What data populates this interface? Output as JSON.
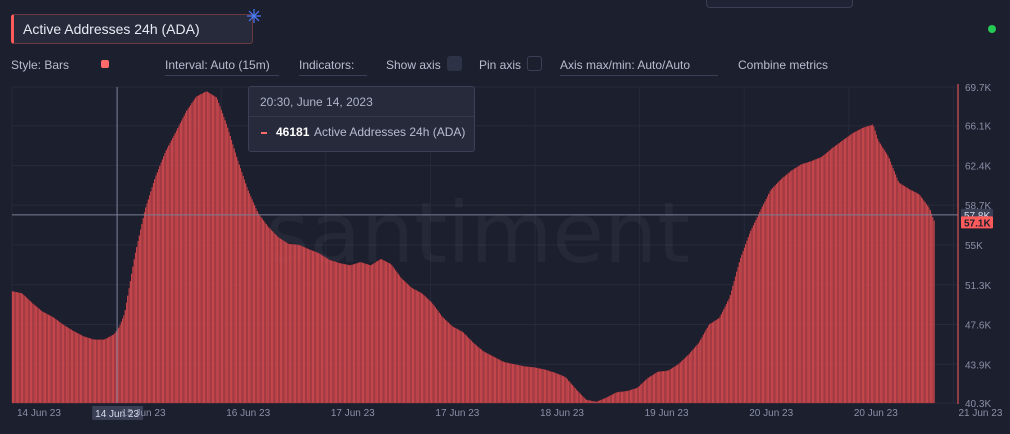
{
  "header": {
    "metric_title": "Active Addresses 24h (ADA)"
  },
  "toolbar": {
    "style": "Style: Bars",
    "interval": "Interval: Auto (15m)",
    "indicators": "Indicators:",
    "show_axis": "Show axis",
    "pin_axis": "Pin axis",
    "axis_maxmin": "Axis max/min: Auto/Auto",
    "combine": "Combine metrics"
  },
  "colors": {
    "bar": "#f05a5e",
    "bar_edge": "#b93a40",
    "accent": "#ff5b5b",
    "status": "#26c953"
  },
  "watermark": "santiment",
  "tooltip": {
    "date": "20:30, June 14, 2023",
    "value": "46181",
    "label": "Active Addresses 24h (ADA)"
  },
  "chart_data": {
    "type": "bar",
    "title": "Active Addresses 24h (ADA)",
    "interval": "15m",
    "xlabel": "",
    "ylabel": "",
    "x_range_hours": [
      0,
      180
    ],
    "ylim": [
      40300,
      69700
    ],
    "y_ticks": [
      "69.7K",
      "66.1K",
      "62.4K",
      "58.7K",
      "55K",
      "51.3K",
      "47.6K",
      "43.9K",
      "40.3K"
    ],
    "y_tick_values": [
      69700,
      66100,
      62400,
      58700,
      55000,
      51300,
      47600,
      43900,
      40300
    ],
    "x_ticks": [
      {
        "label": "14 Jun 23",
        "hour": 0
      },
      {
        "label": "15 Jun 23",
        "hour": 20.4
      },
      {
        "label": "16 Jun 23",
        "hour": 40.8
      },
      {
        "label": "17 Jun 23",
        "hour": 61.2
      },
      {
        "label": "17 Jun 23",
        "hour": 81.6
      },
      {
        "label": "18 Jun 23",
        "hour": 102
      },
      {
        "label": "19 Jun 23",
        "hour": 122.4
      },
      {
        "label": "20 Jun 23",
        "hour": 142.8
      },
      {
        "label": "20 Jun 23",
        "hour": 163.2
      },
      {
        "label": "21 Jun 23",
        "hour": 183.6
      }
    ],
    "crosshair": {
      "hour": 20.5,
      "value": 57800,
      "x_label": "14 Jun 23",
      "y_label": "57.8K"
    },
    "last_value": {
      "value": 57100,
      "label": "57.1K"
    },
    "series": [
      {
        "name": "Active Addresses 24h (ADA)",
        "points_hours": [
          0,
          2,
          4,
          6,
          8,
          10,
          12,
          14,
          16,
          18,
          20,
          21,
          22,
          24,
          26,
          28,
          30,
          32,
          34,
          36,
          38,
          40,
          42,
          44,
          46,
          48,
          50,
          52,
          54,
          56,
          58,
          60,
          62,
          64,
          66,
          68,
          70,
          72,
          74,
          76,
          78,
          80,
          82,
          84,
          86,
          88,
          90,
          92,
          94,
          96,
          98,
          100,
          102,
          104,
          106,
          108,
          110,
          112,
          114,
          116,
          118,
          120,
          122,
          124,
          126,
          128,
          130,
          132,
          134,
          136,
          138,
          140,
          142,
          144,
          146,
          148,
          150,
          152,
          154,
          156,
          158,
          160,
          162,
          164,
          166,
          168,
          169,
          171,
          173,
          175,
          177,
          179,
          180
        ],
        "points_values": [
          50700,
          50500,
          49600,
          48800,
          48300,
          47600,
          47000,
          46500,
          46200,
          46181,
          46700,
          47400,
          48600,
          54000,
          58300,
          61300,
          63700,
          65500,
          67400,
          68800,
          69300,
          68700,
          66100,
          63000,
          60200,
          58000,
          56700,
          55700,
          55100,
          55000,
          54600,
          54200,
          53600,
          53300,
          53100,
          53400,
          53100,
          53700,
          53200,
          51900,
          51000,
          50500,
          49600,
          48300,
          47400,
          46900,
          45900,
          45100,
          44600,
          44100,
          43900,
          43700,
          43600,
          43400,
          43100,
          42700,
          41600,
          40600,
          40400,
          40800,
          41300,
          41400,
          41700,
          42600,
          43200,
          43300,
          43900,
          44800,
          45900,
          47600,
          48200,
          50100,
          53600,
          56200,
          58200,
          60100,
          61100,
          61900,
          62500,
          62800,
          63200,
          64000,
          64700,
          65400,
          65900,
          66200,
          64700,
          63200,
          60800,
          60200,
          59700,
          58400,
          57100
        ]
      }
    ]
  }
}
